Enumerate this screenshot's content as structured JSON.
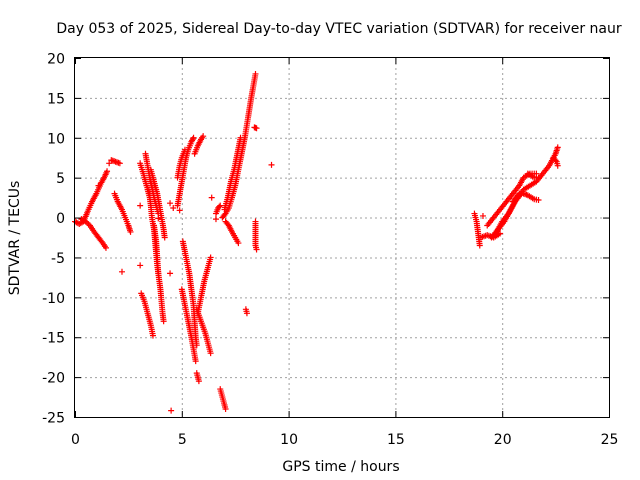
{
  "chart_data": {
    "type": "scatter",
    "title": "Day 053 of 2025, Sidereal Day-to-day VTEC variation (SDTVAR) for receiver naur",
    "xlabel": "GPS time / hours",
    "ylabel": "SDTVAR / TECUs",
    "xlim": [
      0,
      25
    ],
    "ylim": [
      -25,
      20
    ],
    "xticks": [
      "0",
      "5",
      "10",
      "15",
      "20",
      "25"
    ],
    "yticks": [
      "-25",
      "-20",
      "-15",
      "-10",
      "-5",
      "0",
      "5",
      "10",
      "15",
      "20"
    ],
    "grid": true,
    "marker": "+",
    "color": "#ff0000",
    "segments": [
      [
        [
          0.0,
          -0.5
        ],
        [
          0.2,
          -0.8
        ],
        [
          0.4,
          -0.5
        ],
        [
          0.6,
          0.8
        ],
        [
          0.8,
          2.0
        ],
        [
          1.0,
          3.0
        ],
        [
          1.2,
          4.2
        ],
        [
          1.4,
          5.2
        ],
        [
          1.5,
          5.8
        ]
      ],
      [
        [
          0.3,
          -0.2
        ],
        [
          0.5,
          -0.5
        ],
        [
          0.7,
          -1.0
        ],
        [
          0.9,
          -1.8
        ],
        [
          1.1,
          -2.5
        ],
        [
          1.3,
          -3.2
        ],
        [
          1.45,
          -3.8
        ]
      ],
      [
        [
          1.7,
          7.2
        ],
        [
          1.9,
          7.0
        ],
        [
          2.1,
          6.8
        ]
      ],
      [
        [
          1.85,
          3.0
        ],
        [
          2.0,
          2.0
        ],
        [
          2.2,
          1.0
        ],
        [
          2.35,
          0.0
        ],
        [
          2.5,
          -1.0
        ],
        [
          2.6,
          -1.8
        ]
      ],
      [
        [
          3.05,
          6.8
        ],
        [
          3.2,
          5.5
        ],
        [
          3.35,
          4.0
        ],
        [
          3.5,
          3.0
        ]
      ],
      [
        [
          3.3,
          8.0
        ],
        [
          3.4,
          6.5
        ],
        [
          3.5,
          5.0
        ],
        [
          3.6,
          3.8
        ],
        [
          3.7,
          2.5
        ],
        [
          3.8,
          1.5
        ],
        [
          3.9,
          0.5
        ]
      ],
      [
        [
          3.4,
          3.5
        ],
        [
          3.5,
          2.5
        ],
        [
          3.55,
          1.5
        ],
        [
          3.6,
          0.0
        ],
        [
          3.7,
          -1.5
        ],
        [
          3.75,
          -3.0
        ],
        [
          3.8,
          -4.5
        ],
        [
          3.85,
          -6.0
        ],
        [
          3.9,
          -7.0
        ]
      ],
      [
        [
          3.55,
          6.0
        ],
        [
          3.7,
          4.5
        ],
        [
          3.85,
          3.0
        ],
        [
          3.95,
          1.5
        ],
        [
          4.05,
          0.0
        ],
        [
          4.15,
          -1.5
        ],
        [
          4.2,
          -2.5
        ]
      ],
      [
        [
          3.7,
          -1.0
        ],
        [
          3.8,
          -3.0
        ],
        [
          3.85,
          -5.0
        ],
        [
          3.9,
          -7.0
        ],
        [
          4.0,
          -9.0
        ],
        [
          4.05,
          -10.5
        ],
        [
          4.1,
          -12.0
        ],
        [
          4.15,
          -13.0
        ]
      ],
      [
        [
          3.1,
          -9.5
        ],
        [
          3.25,
          -10.5
        ],
        [
          3.4,
          -12.0
        ],
        [
          3.55,
          -13.5
        ],
        [
          3.65,
          -14.8
        ]
      ],
      [
        [
          5.0,
          -9.0
        ],
        [
          5.15,
          -11.0
        ],
        [
          5.3,
          -13.0
        ],
        [
          5.45,
          -15.0
        ],
        [
          5.55,
          -16.5
        ],
        [
          5.65,
          -18.0
        ]
      ],
      [
        [
          5.05,
          -3.0
        ],
        [
          5.2,
          -5.0
        ],
        [
          5.35,
          -7.0
        ],
        [
          5.45,
          -9.0
        ],
        [
          5.55,
          -11.0
        ],
        [
          5.6,
          -13.0
        ],
        [
          5.65,
          -15.0
        ],
        [
          5.7,
          -16.0
        ]
      ],
      [
        [
          4.8,
          1.5
        ],
        [
          4.9,
          3.0
        ],
        [
          5.0,
          4.5
        ],
        [
          5.1,
          6.0
        ],
        [
          5.2,
          7.5
        ],
        [
          5.3,
          8.5
        ],
        [
          5.45,
          9.5
        ],
        [
          5.55,
          10.0
        ]
      ],
      [
        [
          4.8,
          5.0
        ],
        [
          4.9,
          6.5
        ],
        [
          5.0,
          7.5
        ],
        [
          5.15,
          8.5
        ]
      ],
      [
        [
          5.6,
          8.0
        ],
        [
          5.75,
          9.0
        ],
        [
          5.9,
          9.8
        ],
        [
          6.0,
          10.2
        ]
      ],
      [
        [
          5.7,
          -11.5
        ],
        [
          5.9,
          -13.0
        ],
        [
          6.1,
          -14.5
        ],
        [
          6.25,
          -16.0
        ],
        [
          6.35,
          -17.0
        ]
      ],
      [
        [
          5.75,
          -12.0
        ],
        [
          5.9,
          -10.0
        ],
        [
          6.05,
          -8.0
        ],
        [
          6.2,
          -6.5
        ],
        [
          6.35,
          -5.0
        ]
      ],
      [
        [
          5.7,
          -19.5
        ],
        [
          5.8,
          -20.5
        ]
      ],
      [
        [
          6.8,
          -21.5
        ],
        [
          6.9,
          -22.5
        ],
        [
          7.0,
          -23.5
        ],
        [
          7.05,
          -24.0
        ]
      ],
      [
        [
          6.6,
          0.5
        ],
        [
          6.7,
          1.2
        ],
        [
          6.8,
          1.5
        ]
      ],
      [
        [
          6.9,
          0.0
        ],
        [
          7.05,
          0.5
        ],
        [
          7.2,
          1.2
        ],
        [
          7.35,
          2.5
        ],
        [
          7.5,
          4.0
        ],
        [
          7.65,
          6.0
        ],
        [
          7.8,
          8.0
        ],
        [
          7.95,
          10.0
        ],
        [
          8.1,
          12.5
        ],
        [
          8.25,
          15.0
        ],
        [
          8.35,
          16.5
        ],
        [
          8.45,
          18.0
        ]
      ],
      [
        [
          7.0,
          1.0
        ],
        [
          7.15,
          2.5
        ],
        [
          7.3,
          4.5
        ],
        [
          7.45,
          6.0
        ],
        [
          7.6,
          8.0
        ],
        [
          7.75,
          10.0
        ]
      ],
      [
        [
          7.05,
          -0.5
        ],
        [
          7.2,
          -1.0
        ],
        [
          7.35,
          -1.8
        ],
        [
          7.5,
          -2.5
        ],
        [
          7.65,
          -3.2
        ]
      ],
      [
        [
          8.4,
          11.3
        ],
        [
          8.5,
          11.2
        ]
      ],
      [
        [
          8.45,
          -0.5
        ],
        [
          8.45,
          -1.5
        ],
        [
          8.45,
          -2.5
        ],
        [
          8.45,
          -3.5
        ],
        [
          8.5,
          -4.0
        ]
      ],
      [
        [
          8.0,
          -11.5
        ],
        [
          8.05,
          -12.0
        ]
      ],
      [
        [
          18.7,
          0.5
        ],
        [
          18.8,
          -0.5
        ],
        [
          18.85,
          -1.5
        ],
        [
          18.9,
          -2.5
        ],
        [
          18.95,
          -3.5
        ]
      ],
      [
        [
          19.0,
          -2.5
        ],
        [
          19.3,
          -2.2
        ],
        [
          19.6,
          -2.5
        ],
        [
          19.9,
          -2.0
        ]
      ],
      [
        [
          19.3,
          -1.0
        ],
        [
          19.6,
          0.0
        ],
        [
          19.9,
          1.0
        ],
        [
          20.2,
          2.0
        ],
        [
          20.5,
          3.0
        ],
        [
          20.8,
          4.0
        ],
        [
          21.0,
          5.0
        ],
        [
          21.3,
          5.5
        ],
        [
          21.6,
          5.5
        ]
      ],
      [
        [
          19.5,
          -2.5
        ],
        [
          19.8,
          -1.5
        ],
        [
          20.1,
          -0.5
        ],
        [
          20.4,
          1.0
        ],
        [
          20.7,
          2.5
        ],
        [
          21.0,
          3.5
        ],
        [
          21.3,
          4.0
        ],
        [
          21.6,
          4.5
        ],
        [
          21.9,
          5.5
        ],
        [
          22.2,
          6.5
        ],
        [
          22.5,
          8.0
        ],
        [
          22.6,
          8.8
        ]
      ],
      [
        [
          19.7,
          -2.0
        ],
        [
          20.0,
          -0.5
        ],
        [
          20.3,
          0.5
        ],
        [
          20.6,
          2.0
        ],
        [
          20.9,
          3.0
        ]
      ],
      [
        [
          20.5,
          2.0
        ],
        [
          20.8,
          3.0
        ],
        [
          21.0,
          3.0
        ],
        [
          21.2,
          2.8
        ],
        [
          21.5,
          2.3
        ],
        [
          21.7,
          2.2
        ]
      ],
      [
        [
          21.2,
          5.5
        ],
        [
          21.5,
          5.0
        ],
        [
          21.7,
          5.0
        ]
      ],
      [
        [
          22.4,
          7.5
        ],
        [
          22.55,
          7.0
        ],
        [
          22.6,
          6.5
        ]
      ]
    ],
    "points": [
      [
        1.1,
        4.0
      ],
      [
        1.6,
        6.8
      ],
      [
        2.2,
        -6.8
      ],
      [
        3.05,
        -6.0
      ],
      [
        3.05,
        1.5
      ],
      [
        3.9,
        -0.1
      ],
      [
        4.45,
        -7.0
      ],
      [
        4.5,
        -24.2
      ],
      [
        4.45,
        1.8
      ],
      [
        4.6,
        1.2
      ],
      [
        4.9,
        0.9
      ],
      [
        6.4,
        2.5
      ],
      [
        6.6,
        -0.2
      ],
      [
        9.2,
        6.6
      ],
      [
        19.1,
        0.2
      ]
    ]
  }
}
